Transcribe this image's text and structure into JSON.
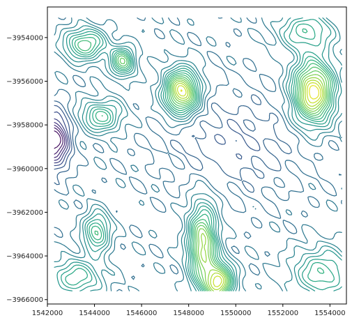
{
  "chart_data": {
    "type": "contour",
    "title": "",
    "xlabel": "",
    "ylabel": "",
    "xlim": [
      1542000,
      1554700
    ],
    "ylim": [
      -3966200,
      -3952600
    ],
    "data_extent": {
      "x": [
        1542300,
        1554500
      ],
      "y": [
        -3965600,
        -3953100
      ]
    },
    "x_ticks": [
      {
        "value": 1542000,
        "label": "1542000"
      },
      {
        "value": 1544000,
        "label": "1544000"
      },
      {
        "value": 1546000,
        "label": "1546000"
      },
      {
        "value": 1548000,
        "label": "1548000"
      },
      {
        "value": 1550000,
        "label": "1550000"
      },
      {
        "value": 1552000,
        "label": "1552000"
      },
      {
        "value": 1554000,
        "label": "1554000"
      }
    ],
    "y_ticks": [
      {
        "value": -3954000,
        "label": "−3954000"
      },
      {
        "value": -3956000,
        "label": "−3956000"
      },
      {
        "value": -3958000,
        "label": "−3958000"
      },
      {
        "value": -3960000,
        "label": "−3960000"
      },
      {
        "value": -3962000,
        "label": "−3962000"
      },
      {
        "value": -3964000,
        "label": "−3964000"
      },
      {
        "value": -3966000,
        "label": "−3966000"
      }
    ],
    "colormap": "viridis",
    "colormap_stops": [
      "#440154",
      "#472c7a",
      "#3b518b",
      "#2c718e",
      "#21908d",
      "#27ad81",
      "#5cc863",
      "#aadc32",
      "#fde725"
    ],
    "grid": false,
    "legend": "none",
    "levels": 24,
    "features": [
      {
        "name": "peak-east",
        "x": 1553300,
        "y": -3956500,
        "sx": 600,
        "sy": 1000,
        "h": 1.0
      },
      {
        "name": "peak-center-north",
        "x": 1547700,
        "y": -3956500,
        "sx": 500,
        "sy": 700,
        "h": 0.95
      },
      {
        "name": "ridge-south-a",
        "x": 1548600,
        "y": -3963500,
        "sx": 420,
        "sy": 1300,
        "h": 0.78
      },
      {
        "name": "ridge-south-b",
        "x": 1549300,
        "y": -3965200,
        "sx": 420,
        "sy": 600,
        "h": 0.85
      },
      {
        "name": "hill-north-a",
        "x": 1545200,
        "y": -3955100,
        "sx": 350,
        "sy": 450,
        "h": 0.6
      },
      {
        "name": "hill-north-b",
        "x": 1543600,
        "y": -3954300,
        "sx": 600,
        "sy": 500,
        "h": 0.55
      },
      {
        "name": "hill-west",
        "x": 1544100,
        "y": -3962900,
        "sx": 380,
        "sy": 600,
        "h": 0.5
      },
      {
        "name": "hill-northwest",
        "x": 1544300,
        "y": -3957600,
        "sx": 600,
        "sy": 500,
        "h": 0.45
      },
      {
        "name": "hill-southwest",
        "x": 1543200,
        "y": -3965000,
        "sx": 800,
        "sy": 600,
        "h": 0.4
      },
      {
        "name": "hill-southeast",
        "x": 1553700,
        "y": -3964800,
        "sx": 900,
        "sy": 800,
        "h": 0.42
      },
      {
        "name": "hill-northeast",
        "x": 1553000,
        "y": -3953700,
        "sx": 800,
        "sy": 600,
        "h": 0.4
      },
      {
        "name": "basin-west",
        "x": 1542300,
        "y": -3958700,
        "sx": 450,
        "sy": 900,
        "h": -0.6
      },
      {
        "name": "basin-center",
        "x": 1550000,
        "y": -3958800,
        "sx": 2000,
        "sy": 1600,
        "h": -0.15
      }
    ]
  }
}
